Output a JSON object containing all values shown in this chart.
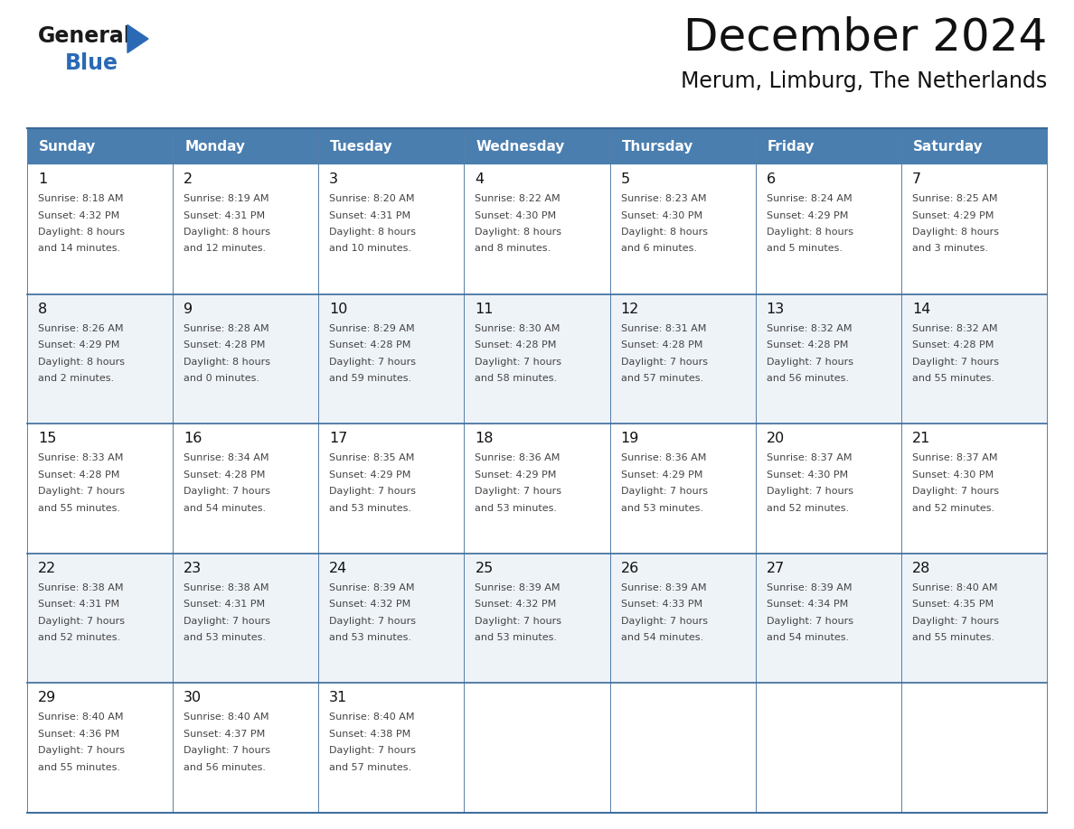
{
  "title": "December 2024",
  "subtitle": "Merum, Limburg, The Netherlands",
  "days_of_week": [
    "Sunday",
    "Monday",
    "Tuesday",
    "Wednesday",
    "Thursday",
    "Friday",
    "Saturday"
  ],
  "header_bg": "#4A7EAF",
  "header_text": "#FFFFFF",
  "row_bg_odd": "#FFFFFF",
  "row_bg_even": "#EEF3F8",
  "row_bg_last": "#F5F5F5",
  "border_color": "#3A6A9A",
  "text_color": "#444444",
  "day_num_color": "#111111",
  "logo_general_color": "#1a1a1a",
  "logo_blue_color": "#2a6ab5",
  "weeks": [
    [
      {
        "day": 1,
        "sunrise": "8:18 AM",
        "sunset": "4:32 PM",
        "daylight_h": "8 hours",
        "daylight_m": "14 minutes."
      },
      {
        "day": 2,
        "sunrise": "8:19 AM",
        "sunset": "4:31 PM",
        "daylight_h": "8 hours",
        "daylight_m": "12 minutes."
      },
      {
        "day": 3,
        "sunrise": "8:20 AM",
        "sunset": "4:31 PM",
        "daylight_h": "8 hours",
        "daylight_m": "10 minutes."
      },
      {
        "day": 4,
        "sunrise": "8:22 AM",
        "sunset": "4:30 PM",
        "daylight_h": "8 hours",
        "daylight_m": "8 minutes."
      },
      {
        "day": 5,
        "sunrise": "8:23 AM",
        "sunset": "4:30 PM",
        "daylight_h": "8 hours",
        "daylight_m": "6 minutes."
      },
      {
        "day": 6,
        "sunrise": "8:24 AM",
        "sunset": "4:29 PM",
        "daylight_h": "8 hours",
        "daylight_m": "5 minutes."
      },
      {
        "day": 7,
        "sunrise": "8:25 AM",
        "sunset": "4:29 PM",
        "daylight_h": "8 hours",
        "daylight_m": "3 minutes."
      }
    ],
    [
      {
        "day": 8,
        "sunrise": "8:26 AM",
        "sunset": "4:29 PM",
        "daylight_h": "8 hours",
        "daylight_m": "2 minutes."
      },
      {
        "day": 9,
        "sunrise": "8:28 AM",
        "sunset": "4:28 PM",
        "daylight_h": "8 hours",
        "daylight_m": "0 minutes."
      },
      {
        "day": 10,
        "sunrise": "8:29 AM",
        "sunset": "4:28 PM",
        "daylight_h": "7 hours",
        "daylight_m": "59 minutes."
      },
      {
        "day": 11,
        "sunrise": "8:30 AM",
        "sunset": "4:28 PM",
        "daylight_h": "7 hours",
        "daylight_m": "58 minutes."
      },
      {
        "day": 12,
        "sunrise": "8:31 AM",
        "sunset": "4:28 PM",
        "daylight_h": "7 hours",
        "daylight_m": "57 minutes."
      },
      {
        "day": 13,
        "sunrise": "8:32 AM",
        "sunset": "4:28 PM",
        "daylight_h": "7 hours",
        "daylight_m": "56 minutes."
      },
      {
        "day": 14,
        "sunrise": "8:32 AM",
        "sunset": "4:28 PM",
        "daylight_h": "7 hours",
        "daylight_m": "55 minutes."
      }
    ],
    [
      {
        "day": 15,
        "sunrise": "8:33 AM",
        "sunset": "4:28 PM",
        "daylight_h": "7 hours",
        "daylight_m": "55 minutes."
      },
      {
        "day": 16,
        "sunrise": "8:34 AM",
        "sunset": "4:28 PM",
        "daylight_h": "7 hours",
        "daylight_m": "54 minutes."
      },
      {
        "day": 17,
        "sunrise": "8:35 AM",
        "sunset": "4:29 PM",
        "daylight_h": "7 hours",
        "daylight_m": "53 minutes."
      },
      {
        "day": 18,
        "sunrise": "8:36 AM",
        "sunset": "4:29 PM",
        "daylight_h": "7 hours",
        "daylight_m": "53 minutes."
      },
      {
        "day": 19,
        "sunrise": "8:36 AM",
        "sunset": "4:29 PM",
        "daylight_h": "7 hours",
        "daylight_m": "53 minutes."
      },
      {
        "day": 20,
        "sunrise": "8:37 AM",
        "sunset": "4:30 PM",
        "daylight_h": "7 hours",
        "daylight_m": "52 minutes."
      },
      {
        "day": 21,
        "sunrise": "8:37 AM",
        "sunset": "4:30 PM",
        "daylight_h": "7 hours",
        "daylight_m": "52 minutes."
      }
    ],
    [
      {
        "day": 22,
        "sunrise": "8:38 AM",
        "sunset": "4:31 PM",
        "daylight_h": "7 hours",
        "daylight_m": "52 minutes."
      },
      {
        "day": 23,
        "sunrise": "8:38 AM",
        "sunset": "4:31 PM",
        "daylight_h": "7 hours",
        "daylight_m": "53 minutes."
      },
      {
        "day": 24,
        "sunrise": "8:39 AM",
        "sunset": "4:32 PM",
        "daylight_h": "7 hours",
        "daylight_m": "53 minutes."
      },
      {
        "day": 25,
        "sunrise": "8:39 AM",
        "sunset": "4:32 PM",
        "daylight_h": "7 hours",
        "daylight_m": "53 minutes."
      },
      {
        "day": 26,
        "sunrise": "8:39 AM",
        "sunset": "4:33 PM",
        "daylight_h": "7 hours",
        "daylight_m": "54 minutes."
      },
      {
        "day": 27,
        "sunrise": "8:39 AM",
        "sunset": "4:34 PM",
        "daylight_h": "7 hours",
        "daylight_m": "54 minutes."
      },
      {
        "day": 28,
        "sunrise": "8:40 AM",
        "sunset": "4:35 PM",
        "daylight_h": "7 hours",
        "daylight_m": "55 minutes."
      }
    ],
    [
      {
        "day": 29,
        "sunrise": "8:40 AM",
        "sunset": "4:36 PM",
        "daylight_h": "7 hours",
        "daylight_m": "55 minutes."
      },
      {
        "day": 30,
        "sunrise": "8:40 AM",
        "sunset": "4:37 PM",
        "daylight_h": "7 hours",
        "daylight_m": "56 minutes."
      },
      {
        "day": 31,
        "sunrise": "8:40 AM",
        "sunset": "4:38 PM",
        "daylight_h": "7 hours",
        "daylight_m": "57 minutes."
      },
      null,
      null,
      null,
      null
    ]
  ]
}
